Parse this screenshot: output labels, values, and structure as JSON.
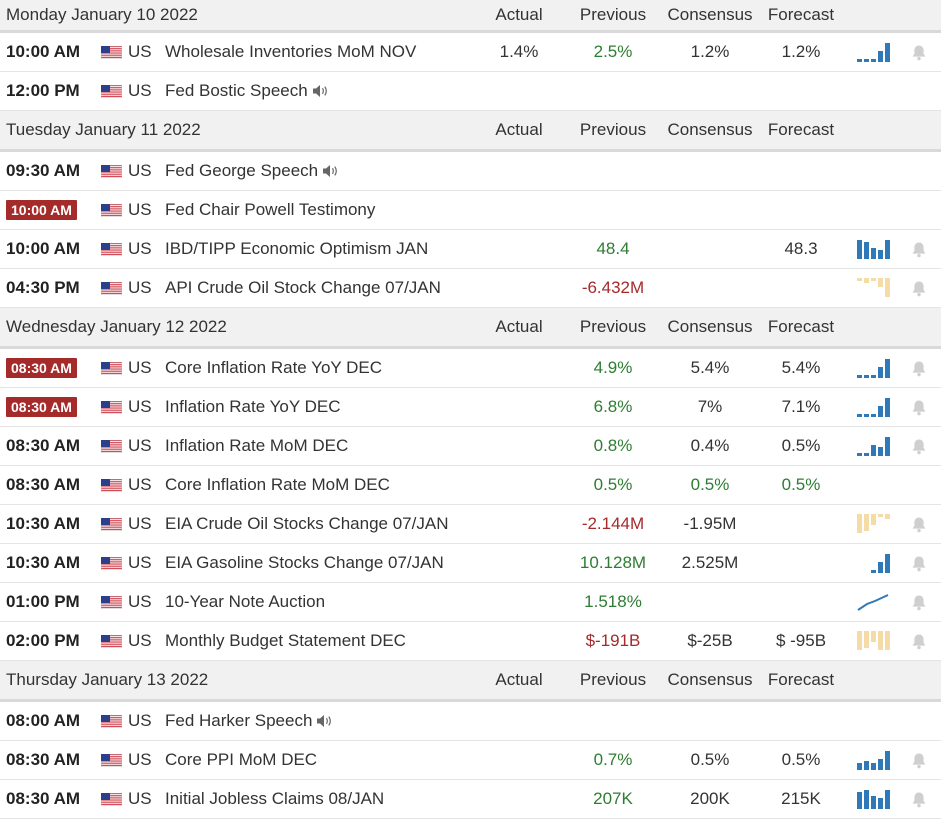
{
  "headers": {
    "actual": "Actual",
    "previous": "Previous",
    "consensus": "Consensus",
    "forecast": "Forecast"
  },
  "colors": {
    "positive": "#2e7d32",
    "negative": "#a52a2a",
    "badge": "#a52a2a",
    "sparkline_blue": "#2f79b8",
    "sparkline_tan": "#f5dca6"
  },
  "days": [
    {
      "title": "Monday January 10 2022",
      "events": [
        {
          "time": "10:00 AM",
          "badge": false,
          "country": "US",
          "name": "Wholesale Inventories MoM NOV",
          "speech": false,
          "actual": "1.4%",
          "previous": "2.5%",
          "previous_tone": "g",
          "consensus": "1.2%",
          "consensus_tone": "",
          "forecast": "1.2%",
          "forecast_tone": "",
          "chart": "bars-blue-rising",
          "bell": true
        },
        {
          "time": "12:00 PM",
          "badge": false,
          "country": "US",
          "name": "Fed Bostic Speech",
          "speech": true,
          "actual": "",
          "previous": "",
          "previous_tone": "",
          "consensus": "",
          "consensus_tone": "",
          "forecast": "",
          "forecast_tone": "",
          "chart": "",
          "bell": false
        }
      ]
    },
    {
      "title": "Tuesday January 11 2022",
      "events": [
        {
          "time": "09:30 AM",
          "badge": false,
          "country": "US",
          "name": "Fed George Speech",
          "speech": true,
          "actual": "",
          "previous": "",
          "previous_tone": "",
          "consensus": "",
          "consensus_tone": "",
          "forecast": "",
          "forecast_tone": "",
          "chart": "",
          "bell": false
        },
        {
          "time": "10:00 AM",
          "badge": true,
          "country": "US",
          "name": "Fed Chair Powell Testimony",
          "speech": false,
          "actual": "",
          "previous": "",
          "previous_tone": "",
          "consensus": "",
          "consensus_tone": "",
          "forecast": "",
          "forecast_tone": "",
          "chart": "",
          "bell": false
        },
        {
          "time": "10:00 AM",
          "badge": false,
          "country": "US",
          "name": "IBD/TIPP Economic Optimism JAN",
          "speech": false,
          "actual": "",
          "previous": "48.4",
          "previous_tone": "g",
          "consensus": "",
          "consensus_tone": "",
          "forecast": "48.3",
          "forecast_tone": "",
          "chart": "bars-blue-full",
          "bell": true
        },
        {
          "time": "04:30 PM",
          "badge": false,
          "country": "US",
          "name": "API Crude Oil Stock Change 07/JAN",
          "speech": false,
          "actual": "",
          "previous": "-6.432M",
          "previous_tone": "r",
          "consensus": "",
          "consensus_tone": "",
          "forecast": "",
          "forecast_tone": "",
          "chart": "bars-tan-down",
          "bell": true
        }
      ]
    },
    {
      "title": "Wednesday January 12 2022",
      "events": [
        {
          "time": "08:30 AM",
          "badge": true,
          "country": "US",
          "name": "Core Inflation Rate YoY DEC",
          "speech": false,
          "actual": "",
          "previous": "4.9%",
          "previous_tone": "g",
          "consensus": "5.4%",
          "consensus_tone": "",
          "forecast": "5.4%",
          "forecast_tone": "",
          "chart": "bars-blue-rising",
          "bell": true
        },
        {
          "time": "08:30 AM",
          "badge": true,
          "country": "US",
          "name": "Inflation Rate YoY DEC",
          "speech": false,
          "actual": "",
          "previous": "6.8%",
          "previous_tone": "g",
          "consensus": "7%",
          "consensus_tone": "",
          "forecast": "7.1%",
          "forecast_tone": "",
          "chart": "bars-blue-rising",
          "bell": true
        },
        {
          "time": "08:30 AM",
          "badge": false,
          "country": "US",
          "name": "Inflation Rate MoM DEC",
          "speech": false,
          "actual": "",
          "previous": "0.8%",
          "previous_tone": "g",
          "consensus": "0.4%",
          "consensus_tone": "",
          "forecast": "0.5%",
          "forecast_tone": "",
          "chart": "bars-blue-mixed",
          "bell": true
        },
        {
          "time": "08:30 AM",
          "badge": false,
          "country": "US",
          "name": "Core Inflation Rate MoM DEC",
          "speech": false,
          "actual": "",
          "previous": "0.5%",
          "previous_tone": "g",
          "consensus": "0.5%",
          "consensus_tone": "g",
          "forecast": "0.5%",
          "forecast_tone": "g",
          "chart": "",
          "bell": false
        },
        {
          "time": "10:30 AM",
          "badge": false,
          "country": "US",
          "name": "EIA Crude Oil Stocks Change 07/JAN",
          "speech": false,
          "actual": "",
          "previous": "-2.144M",
          "previous_tone": "r",
          "consensus": "-1.95M",
          "consensus_tone": "",
          "forecast": "",
          "forecast_tone": "",
          "chart": "bars-tan-mixed",
          "bell": true
        },
        {
          "time": "10:30 AM",
          "badge": false,
          "country": "US",
          "name": "EIA Gasoline Stocks Change 07/JAN",
          "speech": false,
          "actual": "",
          "previous": "10.128M",
          "previous_tone": "g",
          "consensus": "2.525M",
          "consensus_tone": "",
          "forecast": "",
          "forecast_tone": "",
          "chart": "bars-blue-small",
          "bell": true
        },
        {
          "time": "01:00 PM",
          "badge": false,
          "country": "US",
          "name": "10-Year Note Auction",
          "speech": false,
          "actual": "",
          "previous": "1.518%",
          "previous_tone": "g",
          "consensus": "",
          "consensus_tone": "",
          "forecast": "",
          "forecast_tone": "",
          "chart": "line-blue",
          "bell": true
        },
        {
          "time": "02:00 PM",
          "badge": false,
          "country": "US",
          "name": "Monthly Budget Statement DEC",
          "speech": false,
          "actual": "",
          "previous": "$-191B",
          "previous_tone": "r",
          "consensus": "$-25B",
          "consensus_tone": "",
          "forecast": "$ -95B",
          "forecast_tone": "",
          "chart": "bars-tan-full",
          "bell": true
        }
      ]
    },
    {
      "title": "Thursday January 13 2022",
      "events": [
        {
          "time": "08:00 AM",
          "badge": false,
          "country": "US",
          "name": "Fed Harker Speech",
          "speech": true,
          "actual": "",
          "previous": "",
          "previous_tone": "",
          "consensus": "",
          "consensus_tone": "",
          "forecast": "",
          "forecast_tone": "",
          "chart": "",
          "bell": false
        },
        {
          "time": "08:30 AM",
          "badge": false,
          "country": "US",
          "name": "Core PPI MoM DEC",
          "speech": false,
          "actual": "",
          "previous": "0.7%",
          "previous_tone": "g",
          "consensus": "0.5%",
          "consensus_tone": "",
          "forecast": "0.5%",
          "forecast_tone": "",
          "chart": "bars-blue-mixed2",
          "bell": true
        },
        {
          "time": "08:30 AM",
          "badge": false,
          "country": "US",
          "name": "Initial Jobless Claims 08/JAN",
          "speech": false,
          "actual": "",
          "previous": "207K",
          "previous_tone": "g",
          "consensus": "200K",
          "consensus_tone": "",
          "forecast": "215K",
          "forecast_tone": "",
          "chart": "bars-blue-full2",
          "bell": true
        }
      ]
    }
  ]
}
